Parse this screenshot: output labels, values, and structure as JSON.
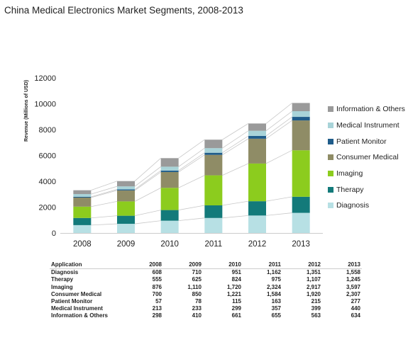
{
  "title": "China Medical Electronics Market Segments, 2008-2013",
  "chart_data": {
    "type": "bar",
    "stacked": true,
    "title": "China Medical Electronics Market Segments, 2008-2013",
    "ylabel": "Revenue (Millions of USD)",
    "xlabel": "",
    "ylim": [
      0,
      12000
    ],
    "yticks": [
      "0",
      "2000",
      "4000",
      "6000",
      "8000",
      "10000",
      "12000"
    ],
    "categories": [
      "2008",
      "2009",
      "2010",
      "2011",
      "2012",
      "2013"
    ],
    "legend_position": "right",
    "series": [
      {
        "name": "Diagnosis",
        "color": "#b7e0e4",
        "values": [
          608,
          710,
          951,
          1162,
          1351,
          1558
        ]
      },
      {
        "name": "Therapy",
        "color": "#137a7a",
        "values": [
          555,
          625,
          824,
          975,
          1107,
          1245
        ]
      },
      {
        "name": "Imaging",
        "color": "#8ccc1e",
        "values": [
          876,
          1110,
          1720,
          2324,
          2917,
          3597
        ]
      },
      {
        "name": "Consumer Medical",
        "color": "#8f8c66",
        "values": [
          700,
          850,
          1221,
          1584,
          1920,
          2307
        ]
      },
      {
        "name": "Patient Monitor",
        "color": "#1f5c8a",
        "values": [
          57,
          78,
          115,
          163,
          215,
          277
        ]
      },
      {
        "name": "Medical Instrument",
        "color": "#a8d3d8",
        "values": [
          213,
          233,
          299,
          357,
          399,
          440
        ]
      },
      {
        "name": "Information & Others",
        "color": "#9a9a9a",
        "values": [
          298,
          410,
          661,
          655,
          563,
          634
        ]
      }
    ]
  },
  "table": {
    "header": [
      "Application",
      "2008",
      "2009",
      "2010",
      "2011",
      "2012",
      "2013"
    ],
    "rows": [
      [
        "Diagnosis",
        "608",
        "710",
        "951",
        "1,162",
        "1,351",
        "1,558"
      ],
      [
        "Therapy",
        "555",
        "625",
        "824",
        "975",
        "1,107",
        "1,245"
      ],
      [
        "Imaging",
        "876",
        "1,110",
        "1,720",
        "2,324",
        "2,917",
        "3,597"
      ],
      [
        "Consumer Medical",
        "700",
        "850",
        "1,221",
        "1,584",
        "1,920",
        "2,307"
      ],
      [
        "Patient Monitor",
        "57",
        "78",
        "115",
        "163",
        "215",
        "277"
      ],
      [
        "Medical Instrument",
        "213",
        "233",
        "299",
        "357",
        "399",
        "440"
      ],
      [
        "Information & Others",
        "298",
        "410",
        "661",
        "655",
        "563",
        "634"
      ]
    ]
  }
}
